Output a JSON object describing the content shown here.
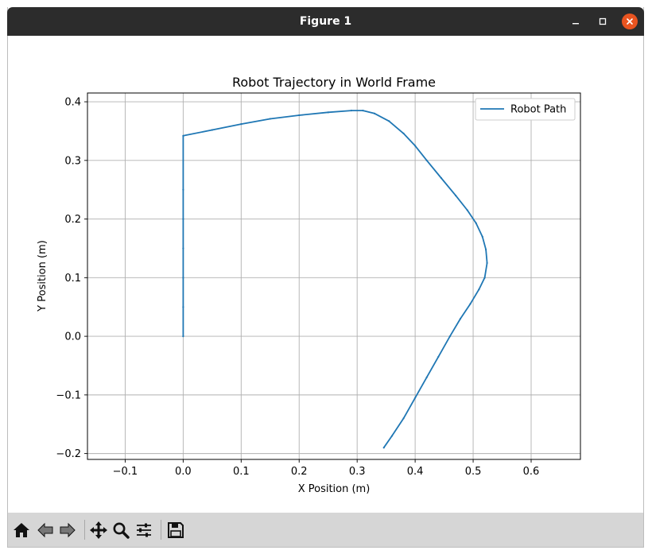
{
  "window": {
    "title": "Figure 1"
  },
  "toolbar": {
    "icons": [
      "home-icon",
      "back-icon",
      "forward-icon",
      "pan-icon",
      "zoom-icon",
      "configure-subplots-icon",
      "save-icon"
    ]
  },
  "colors": {
    "series": "#1f77b4",
    "titlebar": "#2c2c2c",
    "close": "#e95420",
    "grid": "#b0b0b0"
  },
  "chart_data": {
    "type": "line",
    "title": "Robot Trajectory in World Frame",
    "xlabel": "X Position (m)",
    "ylabel": "Y Position (m)",
    "xlim": [
      -0.165,
      0.685
    ],
    "ylim": [
      -0.21,
      0.415
    ],
    "xticks": [
      -0.1,
      0.0,
      0.1,
      0.2,
      0.3,
      0.4,
      0.5,
      0.6
    ],
    "xtick_labels": [
      "−0.1",
      "0.0",
      "0.1",
      "0.2",
      "0.3",
      "0.4",
      "0.5",
      "0.6"
    ],
    "yticks": [
      -0.2,
      -0.1,
      0.0,
      0.1,
      0.2,
      0.3,
      0.4
    ],
    "ytick_labels": [
      "−0.2",
      "−0.1",
      "0.0",
      "0.1",
      "0.2",
      "0.3",
      "0.4"
    ],
    "grid": true,
    "legend_position": "top-right",
    "series": [
      {
        "name": "Robot Path",
        "x": [
          0.0,
          0.0,
          0.0,
          0.0,
          0.0,
          0.0,
          0.0,
          0.05,
          0.1,
          0.15,
          0.2,
          0.25,
          0.29,
          0.31,
          0.33,
          0.355,
          0.38,
          0.4,
          0.42,
          0.445,
          0.47,
          0.49,
          0.505,
          0.516,
          0.522,
          0.524,
          0.52,
          0.51,
          0.495,
          0.478,
          0.46,
          0.44,
          0.42,
          0.4,
          0.38,
          0.36,
          0.346
        ],
        "y": [
          0.0,
          0.05,
          0.1,
          0.15,
          0.2,
          0.25,
          0.342,
          0.352,
          0.362,
          0.371,
          0.377,
          0.382,
          0.385,
          0.385,
          0.38,
          0.367,
          0.346,
          0.325,
          0.3,
          0.27,
          0.24,
          0.215,
          0.193,
          0.17,
          0.148,
          0.125,
          0.1,
          0.08,
          0.055,
          0.03,
          0.0,
          -0.035,
          -0.07,
          -0.105,
          -0.14,
          -0.17,
          -0.19
        ]
      }
    ]
  }
}
